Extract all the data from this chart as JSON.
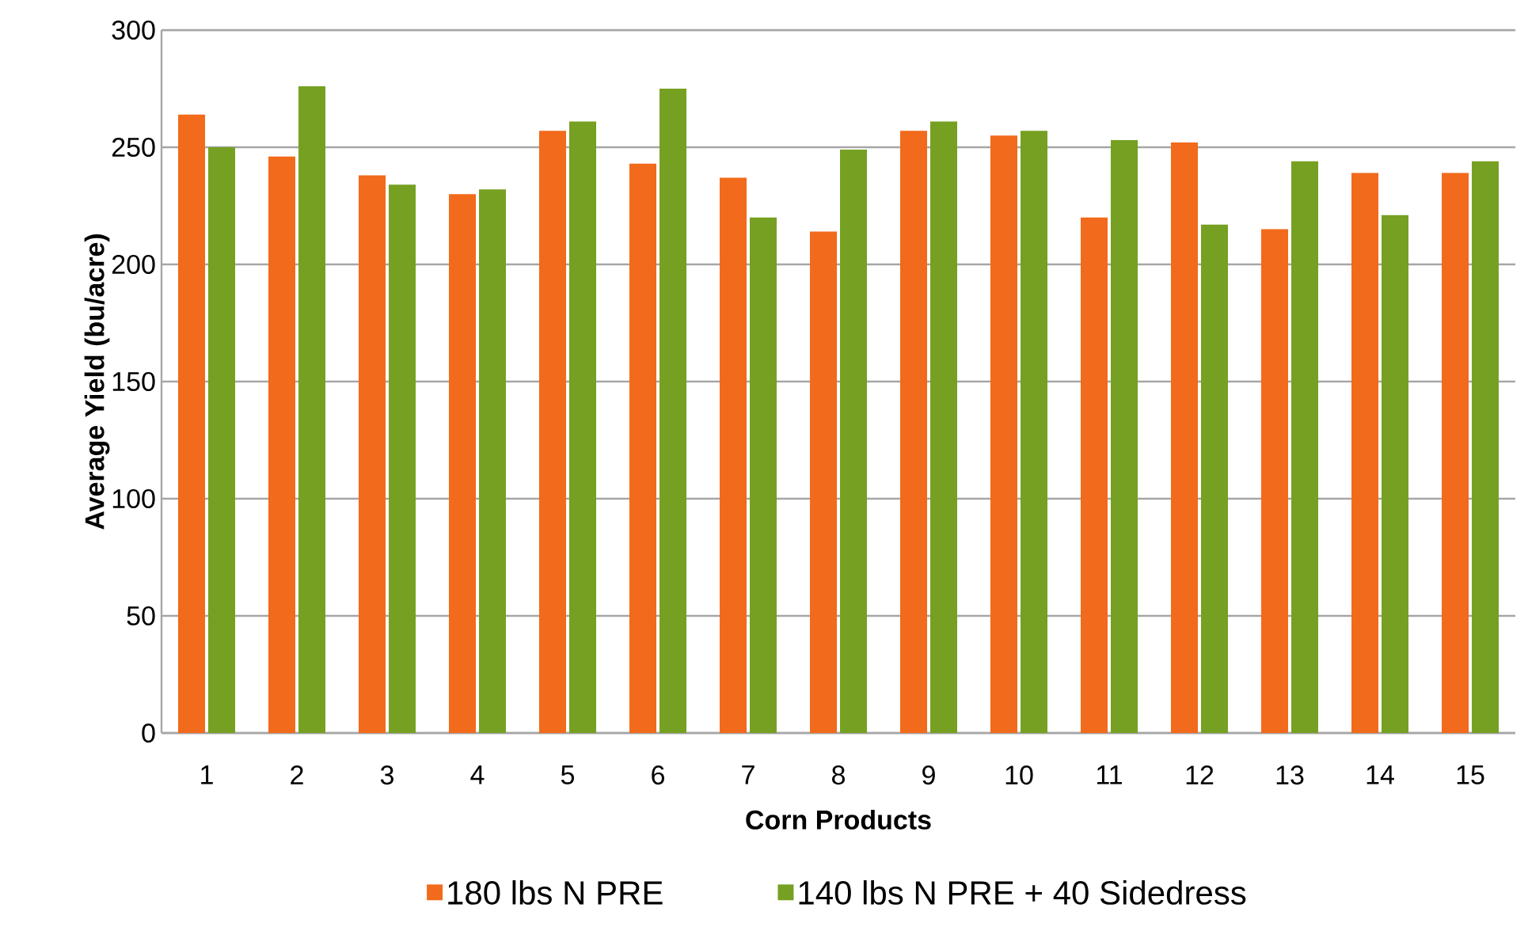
{
  "chart_data": {
    "type": "bar",
    "xlabel": "Corn Products",
    "ylabel": "Average Yield (bu/acre)",
    "categories": [
      "1",
      "2",
      "3",
      "4",
      "5",
      "6",
      "7",
      "8",
      "9",
      "10",
      "11",
      "12",
      "13",
      "14",
      "15"
    ],
    "series": [
      {
        "name": "180 lbs N PRE",
        "color": "#f26a1b",
        "values": [
          264,
          246,
          238,
          230,
          257,
          243,
          237,
          214,
          257,
          255,
          220,
          252,
          215,
          239,
          239
        ]
      },
      {
        "name": "140 lbs N PRE + 40 Sidedress",
        "color": "#76a021",
        "values": [
          250,
          276,
          234,
          232,
          261,
          275,
          220,
          249,
          261,
          257,
          253,
          217,
          244,
          221,
          244
        ]
      }
    ],
    "ylim": [
      0,
      300
    ],
    "yticks": [
      0,
      50,
      100,
      150,
      200,
      250,
      300
    ],
    "grid": "y",
    "legend": "bottom"
  }
}
